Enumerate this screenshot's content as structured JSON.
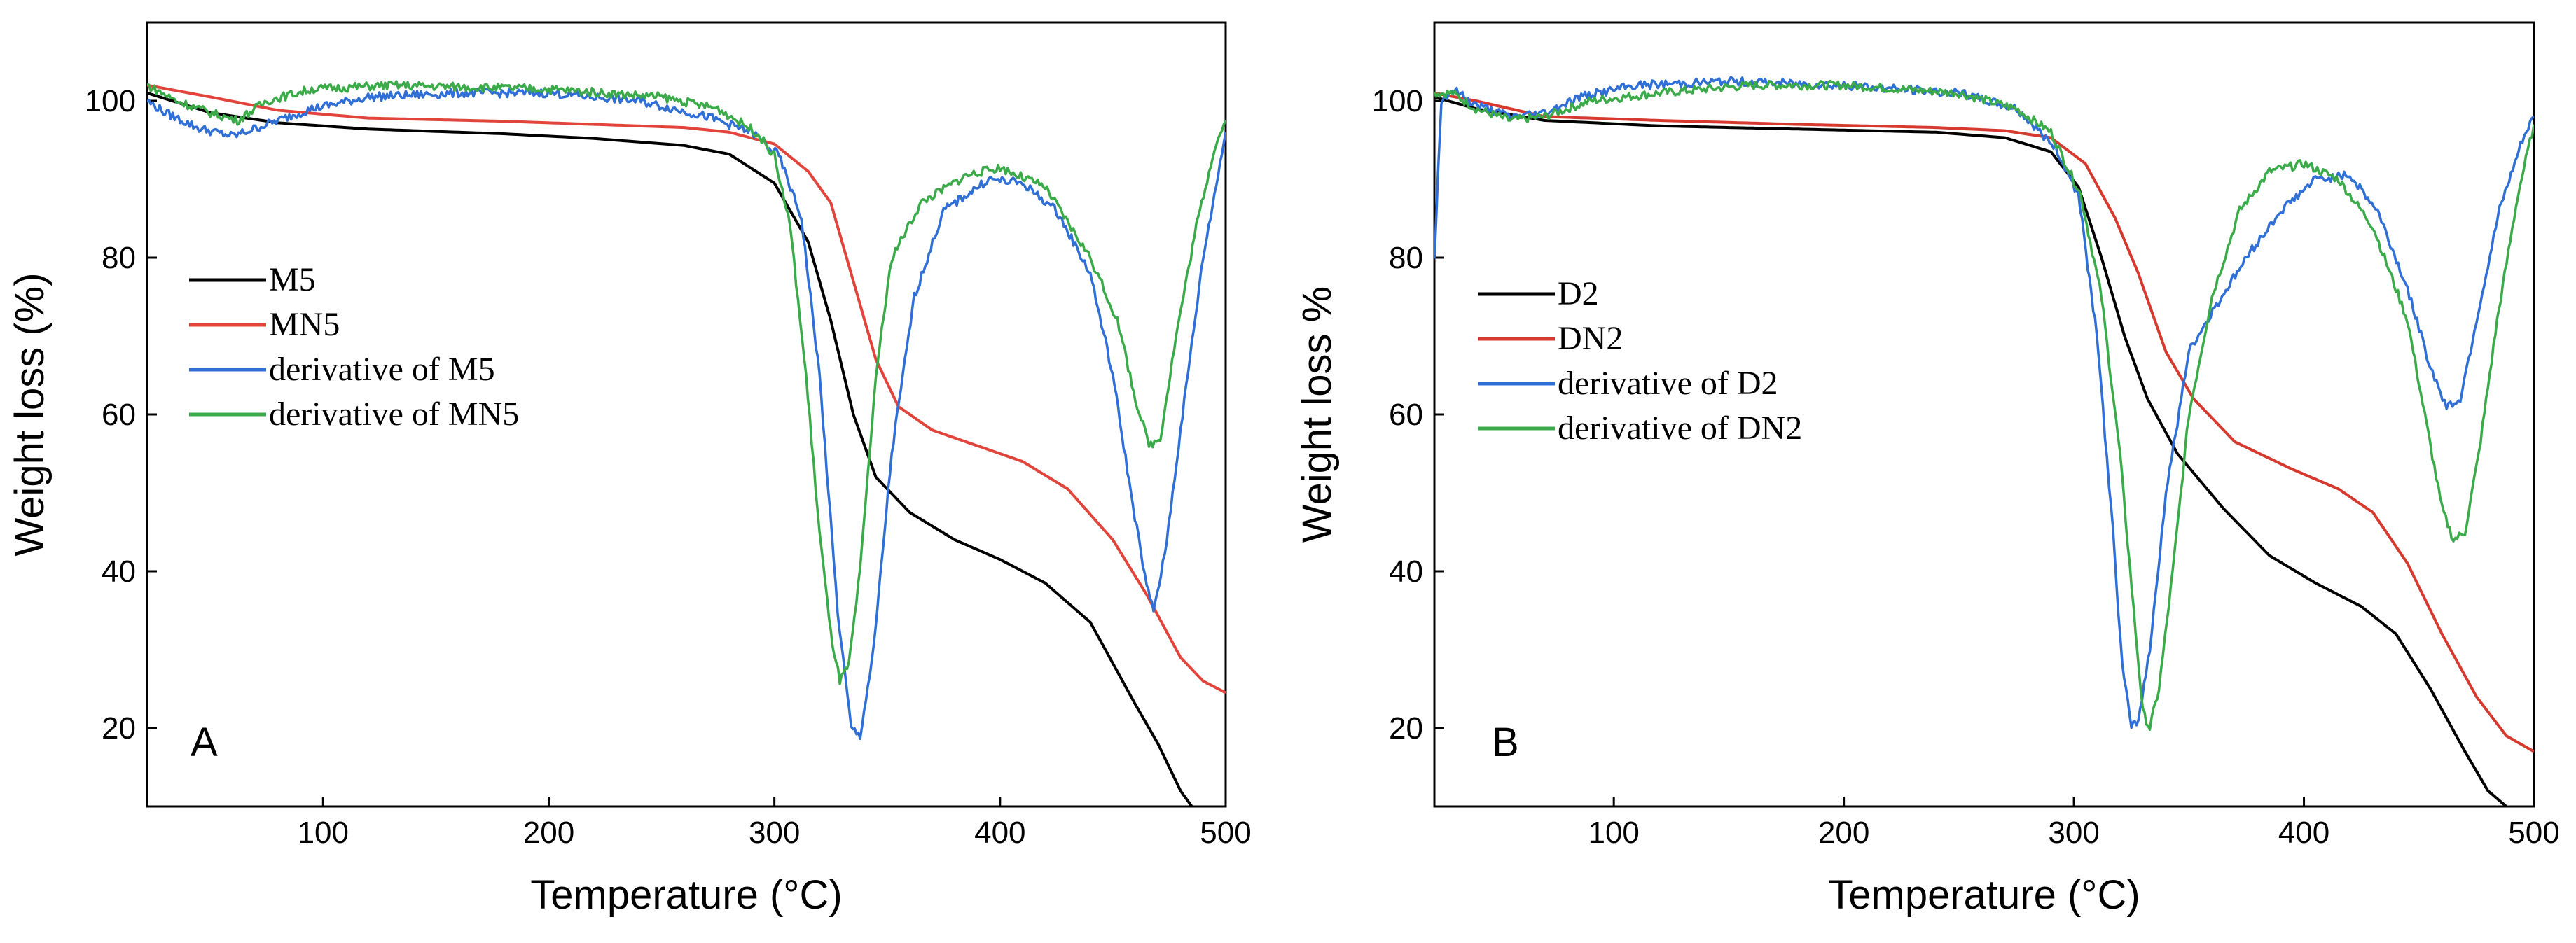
{
  "chart_data": [
    {
      "type": "line",
      "panel_label": "A",
      "xlabel": "Temperature (°C)",
      "ylabel": "Weight loss (%)",
      "xlim": [
        22,
        500
      ],
      "ylim": [
        10,
        110
      ],
      "xticks": [
        100,
        200,
        300,
        400,
        500
      ],
      "yticks": [
        20,
        40,
        60,
        80,
        100
      ],
      "legend_position": "middle-left",
      "series": [
        {
          "name": "M5",
          "color": "#000000",
          "noisy": false,
          "points": [
            [
              22,
              101
            ],
            [
              50,
              98.5
            ],
            [
              80,
              97.2
            ],
            [
              120,
              96.4
            ],
            [
              180,
              95.8
            ],
            [
              220,
              95.2
            ],
            [
              260,
              94.3
            ],
            [
              280,
              93.2
            ],
            [
              300,
              89.5
            ],
            [
              315,
              82
            ],
            [
              325,
              72
            ],
            [
              335,
              60
            ],
            [
              345,
              52
            ],
            [
              360,
              47.5
            ],
            [
              380,
              44
            ],
            [
              400,
              41.5
            ],
            [
              420,
              38.5
            ],
            [
              440,
              33.5
            ],
            [
              460,
              23
            ],
            [
              470,
              18
            ],
            [
              480,
              12
            ],
            [
              485,
              10
            ]
          ]
        },
        {
          "name": "MN5",
          "color": "#e0443a",
          "noisy": false,
          "points": [
            [
              22,
              102
            ],
            [
              50,
              100.5
            ],
            [
              80,
              98.8
            ],
            [
              120,
              97.8
            ],
            [
              180,
              97.4
            ],
            [
              220,
              97.0
            ],
            [
              260,
              96.6
            ],
            [
              280,
              96.0
            ],
            [
              300,
              94.5
            ],
            [
              315,
              91
            ],
            [
              325,
              87
            ],
            [
              335,
              77
            ],
            [
              345,
              67
            ],
            [
              355,
              61
            ],
            [
              370,
              58
            ],
            [
              390,
              56
            ],
            [
              410,
              54
            ],
            [
              430,
              50.5
            ],
            [
              450,
              44
            ],
            [
              465,
              37
            ],
            [
              480,
              29
            ],
            [
              490,
              26
            ],
            [
              500,
              24.5
            ]
          ]
        },
        {
          "name": "derivative of M5",
          "color": "#2f6fd6",
          "noisy": true,
          "points": [
            [
              22,
              100
            ],
            [
              30,
              98.5
            ],
            [
              45,
              96.5
            ],
            [
              60,
              95.5
            ],
            [
              75,
              97
            ],
            [
              95,
              99
            ],
            [
              120,
              100.5
            ],
            [
              160,
              101
            ],
            [
              200,
              101
            ],
            [
              240,
              100
            ],
            [
              270,
              98
            ],
            [
              290,
              96
            ],
            [
              302,
              93
            ],
            [
              312,
              85
            ],
            [
              320,
              65
            ],
            [
              328,
              35
            ],
            [
              334,
              20
            ],
            [
              338,
              19
            ],
            [
              344,
              30
            ],
            [
              352,
              55
            ],
            [
              362,
              75
            ],
            [
              375,
              86
            ],
            [
              395,
              90
            ],
            [
              410,
              89.5
            ],
            [
              425,
              86
            ],
            [
              440,
              78
            ],
            [
              450,
              65
            ],
            [
              458,
              50
            ],
            [
              465,
              38
            ],
            [
              468,
              35
            ],
            [
              473,
              42
            ],
            [
              480,
              58
            ],
            [
              490,
              80
            ],
            [
              500,
              96
            ]
          ]
        },
        {
          "name": "derivative of MN5",
          "color": "#3bab4a",
          "noisy": true,
          "points": [
            [
              22,
              102
            ],
            [
              35,
              100
            ],
            [
              50,
              98.5
            ],
            [
              62,
              97.5
            ],
            [
              75,
              100
            ],
            [
              95,
              101.5
            ],
            [
              130,
              102
            ],
            [
              200,
              101.5
            ],
            [
              250,
              100.5
            ],
            [
              275,
              99
            ],
            [
              292,
              96
            ],
            [
              300,
              93
            ],
            [
              307,
              84
            ],
            [
              314,
              65
            ],
            [
              320,
              45
            ],
            [
              325,
              32
            ],
            [
              329,
              26
            ],
            [
              333,
              28
            ],
            [
              338,
              40
            ],
            [
              345,
              65
            ],
            [
              352,
              80
            ],
            [
              365,
              87
            ],
            [
              385,
              90.5
            ],
            [
              400,
              91.5
            ],
            [
              420,
              89
            ],
            [
              440,
              80
            ],
            [
              452,
              72
            ],
            [
              460,
              62
            ],
            [
              466,
              56
            ],
            [
              471,
              57
            ],
            [
              478,
              70
            ],
            [
              487,
              84
            ],
            [
              495,
              94
            ],
            [
              500,
              97.5
            ]
          ]
        }
      ]
    },
    {
      "type": "line",
      "panel_label": "B",
      "xlabel": "Temperature (°C)",
      "ylabel": "Weight loss %",
      "xlim": [
        22,
        500
      ],
      "ylim": [
        10,
        110
      ],
      "xticks": [
        100,
        200,
        300,
        400,
        500
      ],
      "yticks": [
        20,
        40,
        60,
        80,
        100
      ],
      "legend_position": "middle-left",
      "series": [
        {
          "name": "D2",
          "color": "#000000",
          "noisy": false,
          "points": [
            [
              22,
              100.5
            ],
            [
              40,
              99
            ],
            [
              70,
              97.5
            ],
            [
              120,
              96.8
            ],
            [
              180,
              96.4
            ],
            [
              240,
              96
            ],
            [
              270,
              95.3
            ],
            [
              290,
              93.5
            ],
            [
              302,
              89
            ],
            [
              312,
              80
            ],
            [
              322,
              70
            ],
            [
              332,
              62
            ],
            [
              345,
              55
            ],
            [
              365,
              48
            ],
            [
              385,
              42
            ],
            [
              405,
              38.5
            ],
            [
              425,
              35.5
            ],
            [
              440,
              32
            ],
            [
              455,
              25
            ],
            [
              470,
              17
            ],
            [
              480,
              12
            ],
            [
              488,
              10
            ]
          ]
        },
        {
          "name": "DN2",
          "color": "#d63a2f",
          "noisy": false,
          "points": [
            [
              22,
              101
            ],
            [
              40,
              100
            ],
            [
              70,
              98
            ],
            [
              120,
              97.5
            ],
            [
              180,
              97
            ],
            [
              240,
              96.6
            ],
            [
              270,
              96.2
            ],
            [
              290,
              95.3
            ],
            [
              305,
              92
            ],
            [
              318,
              85
            ],
            [
              328,
              78
            ],
            [
              340,
              68
            ],
            [
              352,
              62
            ],
            [
              370,
              56.5
            ],
            [
              395,
              53
            ],
            [
              415,
              50.5
            ],
            [
              430,
              47.5
            ],
            [
              445,
              41
            ],
            [
              460,
              32
            ],
            [
              475,
              24
            ],
            [
              488,
              19
            ],
            [
              500,
              17
            ]
          ]
        },
        {
          "name": "derivative of D2",
          "color": "#2f6fd6",
          "noisy": true,
          "points": [
            [
              22,
              80
            ],
            [
              25,
              100
            ],
            [
              30,
              101.5
            ],
            [
              40,
              99.5
            ],
            [
              55,
              98
            ],
            [
              70,
              98.5
            ],
            [
              85,
              100.5
            ],
            [
              110,
              102
            ],
            [
              150,
              102.5
            ],
            [
              200,
              102
            ],
            [
              250,
              101
            ],
            [
              275,
              99
            ],
            [
              292,
              94
            ],
            [
              302,
              88
            ],
            [
              310,
              70
            ],
            [
              317,
              45
            ],
            [
              321,
              28
            ],
            [
              325,
              20
            ],
            [
              328,
              21
            ],
            [
              333,
              30
            ],
            [
              340,
              50
            ],
            [
              350,
              68
            ],
            [
              362,
              74
            ],
            [
              375,
              80
            ],
            [
              390,
              86
            ],
            [
              405,
              90
            ],
            [
              420,
              90.5
            ],
            [
              432,
              86
            ],
            [
              445,
              76
            ],
            [
              455,
              66
            ],
            [
              462,
              61
            ],
            [
              468,
              62
            ],
            [
              475,
              72
            ],
            [
              485,
              86
            ],
            [
              495,
              95
            ],
            [
              500,
              98
            ]
          ]
        },
        {
          "name": "derivative of DN2",
          "color": "#3bab4a",
          "noisy": true,
          "points": [
            [
              22,
              101
            ],
            [
              30,
              101
            ],
            [
              40,
              99
            ],
            [
              55,
              97.5
            ],
            [
              70,
              98
            ],
            [
              90,
              100
            ],
            [
              120,
              101
            ],
            [
              160,
              102
            ],
            [
              200,
              102
            ],
            [
              250,
              101
            ],
            [
              275,
              99
            ],
            [
              290,
              96
            ],
            [
              303,
              88
            ],
            [
              312,
              75
            ],
            [
              320,
              55
            ],
            [
              326,
              35
            ],
            [
              330,
              22
            ],
            [
              333,
              20
            ],
            [
              337,
              25
            ],
            [
              343,
              40
            ],
            [
              350,
              60
            ],
            [
              360,
              75
            ],
            [
              372,
              86
            ],
            [
              385,
              91
            ],
            [
              400,
              92
            ],
            [
              415,
              90
            ],
            [
              430,
              84
            ],
            [
              445,
              72
            ],
            [
              455,
              56
            ],
            [
              460,
              48
            ],
            [
              465,
              44
            ],
            [
              470,
              45
            ],
            [
              476,
              55
            ],
            [
              484,
              72
            ],
            [
              493,
              88
            ],
            [
              500,
              97
            ]
          ]
        }
      ]
    }
  ]
}
